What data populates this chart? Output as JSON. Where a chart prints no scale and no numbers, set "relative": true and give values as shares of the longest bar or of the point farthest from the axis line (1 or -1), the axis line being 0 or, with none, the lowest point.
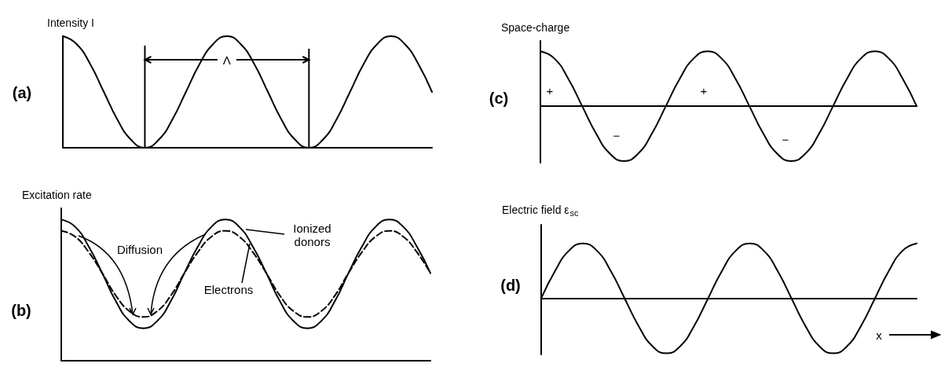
{
  "chart_data": [
    {
      "type": "line",
      "relative": true,
      "ylabel": "Intensity I",
      "marker": "none",
      "annotations": [
        "(a)",
        "Λ"
      ],
      "categories": [
        null,
        null,
        null,
        null,
        null,
        null,
        null,
        null,
        null,
        null,
        null,
        null,
        null,
        null,
        null,
        null,
        null,
        null,
        null,
        null,
        null,
        null,
        null,
        null,
        null,
        null,
        null,
        null
      ],
      "series": [
        {
          "color": "#000000",
          "line_style": "solid",
          "values": [
            1,
            0.93,
            0.75,
            0.5,
            0.25,
            0.07,
            0,
            0.07,
            0.25,
            0.5,
            0.75,
            0.93,
            1,
            0.93,
            0.75,
            0.5,
            0.25,
            0.07,
            0,
            0.07,
            0.25,
            0.5,
            0.75,
            0.93,
            1,
            0.93,
            0.75,
            0.5
          ]
        }
      ]
    },
    {
      "type": "line",
      "relative": true,
      "ylabel": "Excitation rate",
      "marker": "none",
      "annotations": [
        "(b)",
        "Diffusion"
      ],
      "categories": [
        null,
        null,
        null,
        null,
        null,
        null,
        null,
        null,
        null,
        null,
        null,
        null,
        null,
        null,
        null,
        null,
        null,
        null,
        null,
        null,
        null,
        null,
        null,
        null,
        null,
        null,
        null,
        null
      ],
      "series": [
        {
          "name": "Ionized donors",
          "color": "#000000",
          "line_style": "solid",
          "values": [
            1,
            0.95,
            0.81,
            0.62,
            0.42,
            0.28,
            0.23,
            0.28,
            0.42,
            0.62,
            0.81,
            0.95,
            1,
            0.95,
            0.81,
            0.62,
            0.42,
            0.28,
            0.23,
            0.28,
            0.42,
            0.62,
            0.81,
            0.95,
            1,
            0.95,
            0.81,
            0.62
          ]
        },
        {
          "name": "Electrons",
          "color": "#000000",
          "line_style": "dashed",
          "values": [
            0.92,
            0.88,
            0.77,
            0.62,
            0.46,
            0.35,
            0.31,
            0.35,
            0.46,
            0.62,
            0.77,
            0.88,
            0.92,
            0.88,
            0.77,
            0.62,
            0.46,
            0.35,
            0.31,
            0.35,
            0.46,
            0.62,
            0.77,
            0.88,
            0.92,
            0.88,
            0.77,
            0.62
          ]
        }
      ]
    },
    {
      "type": "line",
      "relative": true,
      "ylabel": "Space-charge",
      "marker": "none",
      "annotations": [
        "(c)",
        "+",
        "−",
        "+",
        "−"
      ],
      "categories": [
        null,
        null,
        null,
        null,
        null,
        null,
        null,
        null,
        null,
        null,
        null,
        null,
        null,
        null,
        null,
        null,
        null,
        null,
        null,
        null,
        null,
        null,
        null,
        null,
        null,
        null,
        null,
        null
      ],
      "series": [
        {
          "color": "#000000",
          "line_style": "solid",
          "values": [
            1,
            0.87,
            0.5,
            0,
            -0.5,
            -0.87,
            -1,
            -0.87,
            -0.5,
            0,
            0.5,
            0.87,
            1,
            0.87,
            0.5,
            0,
            -0.5,
            -0.87,
            -1,
            -0.87,
            -0.5,
            0,
            0.5,
            0.87,
            1,
            0.87,
            0.5,
            0
          ]
        }
      ]
    },
    {
      "type": "line",
      "relative": true,
      "ylabel": "Electric field ε$_{sc}$",
      "xlabel": "x",
      "marker": "none",
      "annotations": [
        "(d)"
      ],
      "categories": [
        null,
        null,
        null,
        null,
        null,
        null,
        null,
        null,
        null,
        null,
        null,
        null,
        null,
        null,
        null,
        null,
        null,
        null,
        null,
        null,
        null,
        null,
        null,
        null,
        null,
        null,
        null,
        null
      ],
      "series": [
        {
          "color": "#000000",
          "line_style": "solid",
          "values": [
            0,
            0.5,
            0.87,
            1,
            0.87,
            0.5,
            0,
            -0.5,
            -0.87,
            -1,
            -0.87,
            -0.5,
            0,
            0.5,
            0.87,
            1,
            0.87,
            0.5,
            0,
            -0.5,
            -0.87,
            -1,
            -0.87,
            -0.5,
            0,
            0.5,
            0.87,
            1
          ]
        }
      ]
    }
  ]
}
